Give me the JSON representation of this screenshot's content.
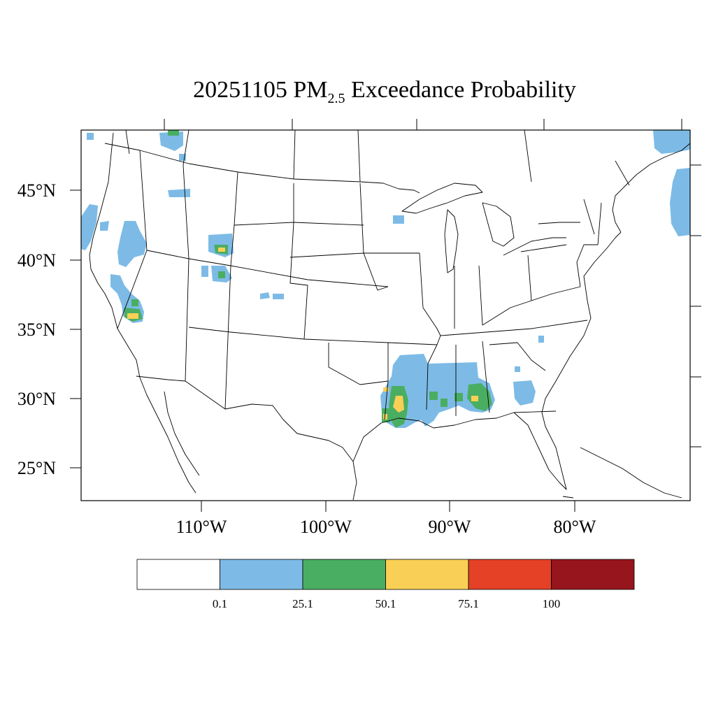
{
  "title": {
    "date": "20251105",
    "species_main": "PM",
    "species_sub": "2.5",
    "rest": "Exceedance Probability"
  },
  "axes": {
    "lat_labels": [
      "45°N",
      "40°N",
      "35°N",
      "30°N",
      "25°N"
    ],
    "lon_labels": [
      "110°W",
      "100°W",
      "90°W",
      "80°W"
    ]
  },
  "colorbar": {
    "colors": [
      "#ffffff",
      "#7dbbe6",
      "#4aae62",
      "#f9d055",
      "#e44127",
      "#97151c"
    ],
    "labels": [
      "0.1",
      "25.1",
      "50.1",
      "75.1",
      "100"
    ]
  },
  "regions": [
    {
      "name": "pacific-northwest-coast",
      "color": "#7dbbe6"
    },
    {
      "name": "northern-california",
      "color": "#7dbbe6"
    },
    {
      "name": "sierra-nevada",
      "color": "#7dbbe6"
    },
    {
      "name": "wyoming-idaho",
      "color": "#7dbbe6"
    },
    {
      "name": "texas-louisiana",
      "color": "#7dbbe6"
    },
    {
      "name": "mississippi-alabama",
      "color": "#7dbbe6"
    },
    {
      "name": "southern-georgia",
      "color": "#7dbbe6"
    },
    {
      "name": "quebec",
      "color": "#7dbbe6"
    }
  ]
}
